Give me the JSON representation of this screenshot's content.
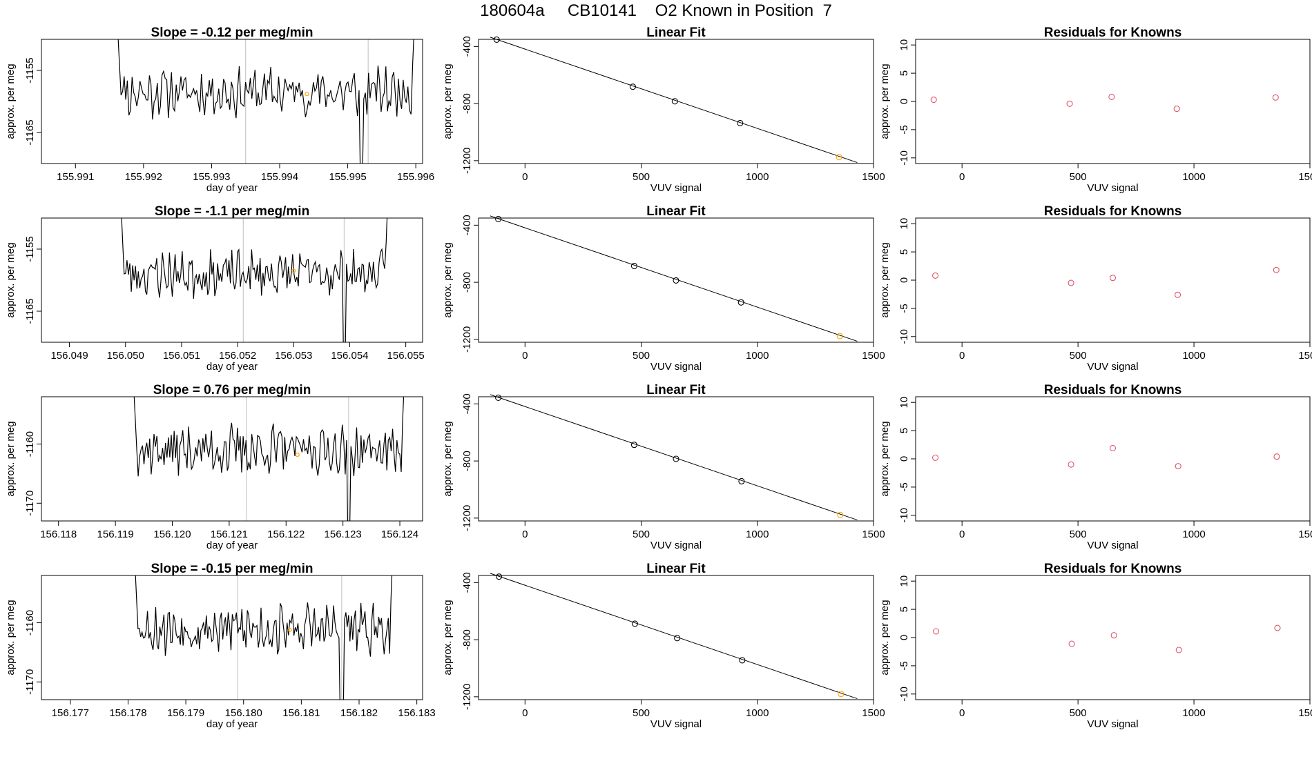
{
  "page": {
    "title": "180604a     CB10141    O2 Known in Position  7"
  },
  "colors": {
    "line": "#000000",
    "gridline": "#bebebe",
    "highlight_point": "#ffa500",
    "residual_point": "#df536b",
    "fit_point": "#000000"
  },
  "chart_data": [
    {
      "type": "line",
      "row": 0,
      "panel": "timeseries",
      "title": "Slope =  -0.12  per meg/min",
      "xlabel": "day of year",
      "ylabel": "approx. per meg",
      "xlim": [
        155.9905,
        155.9961
      ],
      "ylim": [
        -1170,
        -1150
      ],
      "xticks": [
        155.991,
        155.992,
        155.993,
        155.994,
        155.995,
        155.996
      ],
      "xtick_labels": [
        "155.991",
        "155.992",
        "155.993",
        "155.994",
        "155.995",
        "155.996"
      ],
      "yticks": [
        -1155,
        -1165
      ],
      "ytick_labels": [
        "-1155",
        "-1165"
      ],
      "vlines": [
        155.9935,
        155.9953
      ],
      "highlight": {
        "x": 155.9944,
        "y": -1158.8
      },
      "series": [
        {
          "name": "signal",
          "start": 155.9916,
          "end": 155.996,
          "baseline": -1158.5,
          "amplitude": 3.2,
          "seed": 11,
          "dip_x": 155.9952,
          "dip_y": -1175
        }
      ]
    },
    {
      "type": "scatter",
      "row": 0,
      "panel": "linearfit",
      "title": "Linear Fit",
      "xlabel": "VUV signal",
      "ylabel": "approx. per meg",
      "xlim": [
        -200,
        1500
      ],
      "ylim": [
        -1220,
        -350
      ],
      "xticks": [
        0,
        500,
        1000,
        1500
      ],
      "xtick_labels": [
        "0",
        "500",
        "1000",
        "1500"
      ],
      "yticks": [
        -400,
        -800,
        -1200
      ],
      "ytick_labels": [
        "-400",
        "-800",
        "-1200"
      ],
      "fit": {
        "x": [
          -150,
          1430
        ],
        "y": [
          -335,
          -1213
        ]
      },
      "points": [
        {
          "x": -122,
          "y": -352,
          "highlight": false
        },
        {
          "x": 464,
          "y": -682,
          "highlight": false
        },
        {
          "x": 645,
          "y": -784,
          "highlight": false
        },
        {
          "x": 926,
          "y": -937,
          "highlight": false
        },
        {
          "x": 1352,
          "y": -1175,
          "highlight": true
        }
      ]
    },
    {
      "type": "scatter",
      "row": 0,
      "panel": "residuals",
      "title": "Residuals for Knowns",
      "xlabel": "VUV signal",
      "ylabel": "approx. per meg",
      "xlim": [
        -200,
        1500
      ],
      "ylim": [
        -11,
        11
      ],
      "xticks": [
        0,
        500,
        1000,
        1500
      ],
      "xtick_labels": [
        "0",
        "500",
        "1000",
        "1500"
      ],
      "yticks": [
        10,
        5,
        0,
        -5,
        -10
      ],
      "ytick_labels": [
        "10",
        "5",
        "0",
        "-5",
        "-10"
      ],
      "points": [
        {
          "x": -122,
          "y": 0.3
        },
        {
          "x": 464,
          "y": -0.4
        },
        {
          "x": 645,
          "y": 0.8
        },
        {
          "x": 926,
          "y": -1.3
        },
        {
          "x": 1352,
          "y": 0.7
        }
      ]
    },
    {
      "type": "line",
      "row": 1,
      "panel": "timeseries",
      "title": "Slope =  -1.1  per meg/min",
      "xlabel": "day of year",
      "ylabel": "approx. per meg",
      "xlim": [
        156.0485,
        156.0553
      ],
      "ylim": [
        -1170,
        -1150
      ],
      "xticks": [
        156.049,
        156.05,
        156.051,
        156.052,
        156.053,
        156.054,
        156.055
      ],
      "xtick_labels": [
        "156.049",
        "156.050",
        "156.051",
        "156.052",
        "156.053",
        "156.054",
        "156.055"
      ],
      "yticks": [
        -1155,
        -1165
      ],
      "ytick_labels": [
        "-1155",
        "-1165"
      ],
      "vlines": [
        156.0521,
        156.0539
      ],
      "highlight": {
        "x": 156.053,
        "y": -1158.5
      },
      "series": [
        {
          "name": "signal",
          "start": 156.0499,
          "end": 156.0547,
          "baseline": -1159,
          "amplitude": 3.0,
          "seed": 23,
          "dip_x": 156.0539,
          "dip_y": -1175
        }
      ]
    },
    {
      "type": "scatter",
      "row": 1,
      "panel": "linearfit",
      "title": "Linear Fit",
      "xlabel": "VUV signal",
      "ylabel": "approx. per meg",
      "xlim": [
        -200,
        1500
      ],
      "ylim": [
        -1220,
        -350
      ],
      "xticks": [
        0,
        500,
        1000,
        1500
      ],
      "xtick_labels": [
        "0",
        "500",
        "1000",
        "1500"
      ],
      "yticks": [
        -400,
        -800,
        -1200
      ],
      "ytick_labels": [
        "-400",
        "-800",
        "-1200"
      ],
      "fit": {
        "x": [
          -150,
          1430
        ],
        "y": [
          -335,
          -1213
        ]
      },
      "points": [
        {
          "x": -115,
          "y": -357,
          "highlight": false
        },
        {
          "x": 470,
          "y": -686,
          "highlight": false
        },
        {
          "x": 650,
          "y": -787,
          "highlight": false
        },
        {
          "x": 930,
          "y": -941,
          "highlight": false
        },
        {
          "x": 1355,
          "y": -1177,
          "highlight": true
        }
      ]
    },
    {
      "type": "scatter",
      "row": 1,
      "panel": "residuals",
      "title": "Residuals for Knowns",
      "xlabel": "VUV signal",
      "ylabel": "approx. per meg",
      "xlim": [
        -200,
        1500
      ],
      "ylim": [
        -11,
        11
      ],
      "xticks": [
        0,
        500,
        1000,
        1500
      ],
      "xtick_labels": [
        "0",
        "500",
        "1000",
        "1500"
      ],
      "yticks": [
        10,
        5,
        0,
        -5,
        -10
      ],
      "ytick_labels": [
        "10",
        "5",
        "0",
        "-5",
        "-10"
      ],
      "points": [
        {
          "x": -115,
          "y": 0.8
        },
        {
          "x": 470,
          "y": -0.5
        },
        {
          "x": 650,
          "y": 0.4
        },
        {
          "x": 930,
          "y": -2.6
        },
        {
          "x": 1355,
          "y": 1.8
        }
      ]
    },
    {
      "type": "line",
      "row": 2,
      "panel": "timeseries",
      "title": "Slope =  0.76  per meg/min",
      "xlabel": "day of year",
      "ylabel": "approx. per meg",
      "xlim": [
        156.1177,
        156.1244
      ],
      "ylim": [
        -1173,
        -1152
      ],
      "xticks": [
        156.118,
        156.119,
        156.12,
        156.121,
        156.122,
        156.123,
        156.124
      ],
      "xtick_labels": [
        "156.118",
        "156.119",
        "156.120",
        "156.121",
        "156.122",
        "156.123",
        "156.124"
      ],
      "yticks": [
        -1160,
        -1170
      ],
      "ytick_labels": [
        "-1160",
        "-1170"
      ],
      "vlines": [
        156.1213,
        156.1231
      ],
      "highlight": {
        "x": 156.1222,
        "y": -1161.8
      },
      "series": [
        {
          "name": "signal",
          "start": 156.1193,
          "end": 156.1241,
          "baseline": -1161,
          "amplitude": 3.4,
          "seed": 37,
          "dip_x": 156.1231,
          "dip_y": -1178
        }
      ]
    },
    {
      "type": "scatter",
      "row": 2,
      "panel": "linearfit",
      "title": "Linear Fit",
      "xlabel": "VUV signal",
      "ylabel": "approx. per meg",
      "xlim": [
        -200,
        1500
      ],
      "ylim": [
        -1220,
        -350
      ],
      "xticks": [
        0,
        500,
        1000,
        1500
      ],
      "xtick_labels": [
        "0",
        "500",
        "1000",
        "1500"
      ],
      "yticks": [
        -400,
        -800,
        -1200
      ],
      "ytick_labels": [
        "-400",
        "-800",
        "-1200"
      ],
      "fit": {
        "x": [
          -150,
          1430
        ],
        "y": [
          -335,
          -1213
        ]
      },
      "points": [
        {
          "x": -115,
          "y": -357,
          "highlight": false
        },
        {
          "x": 470,
          "y": -687,
          "highlight": false
        },
        {
          "x": 650,
          "y": -785,
          "highlight": false
        },
        {
          "x": 932,
          "y": -942,
          "highlight": false
        },
        {
          "x": 1357,
          "y": -1178,
          "highlight": true
        }
      ]
    },
    {
      "type": "scatter",
      "row": 2,
      "panel": "residuals",
      "title": "Residuals for Knowns",
      "xlabel": "VUV signal",
      "ylabel": "approx. per meg",
      "xlim": [
        -200,
        1500
      ],
      "ylim": [
        -11,
        11
      ],
      "xticks": [
        0,
        500,
        1000,
        1500
      ],
      "xtick_labels": [
        "0",
        "500",
        "1000",
        "1500"
      ],
      "yticks": [
        10,
        5,
        0,
        -5,
        -10
      ],
      "ytick_labels": [
        "10",
        "5",
        "0",
        "-5",
        "-10"
      ],
      "points": [
        {
          "x": -115,
          "y": 0.2
        },
        {
          "x": 470,
          "y": -1.0
        },
        {
          "x": 650,
          "y": 1.9
        },
        {
          "x": 932,
          "y": -1.3
        },
        {
          "x": 1357,
          "y": 0.4
        }
      ]
    },
    {
      "type": "line",
      "row": 3,
      "panel": "timeseries",
      "title": "Slope =  -0.15  per meg/min",
      "xlabel": "day of year",
      "ylabel": "approx. per meg",
      "xlim": [
        156.1765,
        156.1831
      ],
      "ylim": [
        -1173,
        -1152
      ],
      "xticks": [
        156.177,
        156.178,
        156.179,
        156.18,
        156.181,
        156.182,
        156.183
      ],
      "xtick_labels": [
        "156.177",
        "156.178",
        "156.179",
        "156.180",
        "156.181",
        "156.182",
        "156.183"
      ],
      "yticks": [
        -1160,
        -1170
      ],
      "ytick_labels": [
        "-1160",
        "-1170"
      ],
      "vlines": [
        156.1799,
        156.1817
      ],
      "highlight": {
        "x": 156.1808,
        "y": -1161.2
      },
      "series": [
        {
          "name": "signal",
          "start": 156.1781,
          "end": 156.1826,
          "baseline": -1161,
          "amplitude": 3.4,
          "seed": 53,
          "dip_x": 156.1817,
          "dip_y": -1178
        }
      ]
    },
    {
      "type": "scatter",
      "row": 3,
      "panel": "linearfit",
      "title": "Linear Fit",
      "xlabel": "VUV signal",
      "ylabel": "approx. per meg",
      "xlim": [
        -200,
        1500
      ],
      "ylim": [
        -1220,
        -350
      ],
      "xticks": [
        0,
        500,
        1000,
        1500
      ],
      "xtick_labels": [
        "0",
        "500",
        "1000",
        "1500"
      ],
      "yticks": [
        -400,
        -800,
        -1200
      ],
      "ytick_labels": [
        "-400",
        "-800",
        "-1200"
      ],
      "fit": {
        "x": [
          -150,
          1430
        ],
        "y": [
          -335,
          -1213
        ]
      },
      "points": [
        {
          "x": -112,
          "y": -358,
          "highlight": false
        },
        {
          "x": 473,
          "y": -688,
          "highlight": false
        },
        {
          "x": 655,
          "y": -789,
          "highlight": false
        },
        {
          "x": 935,
          "y": -944,
          "highlight": false
        },
        {
          "x": 1360,
          "y": -1180,
          "highlight": true
        }
      ]
    },
    {
      "type": "scatter",
      "row": 3,
      "panel": "residuals",
      "title": "Residuals for Knowns",
      "xlabel": "VUV signal",
      "ylabel": "approx. per meg",
      "xlim": [
        -200,
        1500
      ],
      "ylim": [
        -11,
        11
      ],
      "xticks": [
        0,
        500,
        1000,
        1500
      ],
      "xtick_labels": [
        "0",
        "500",
        "1000",
        "1500"
      ],
      "yticks": [
        10,
        5,
        0,
        -5,
        -10
      ],
      "ytick_labels": [
        "10",
        "5",
        "0",
        "-5",
        "-10"
      ],
      "points": [
        {
          "x": -112,
          "y": 1.1
        },
        {
          "x": 473,
          "y": -1.1
        },
        {
          "x": 655,
          "y": 0.4
        },
        {
          "x": 935,
          "y": -2.2
        },
        {
          "x": 1360,
          "y": 1.7
        }
      ]
    }
  ]
}
